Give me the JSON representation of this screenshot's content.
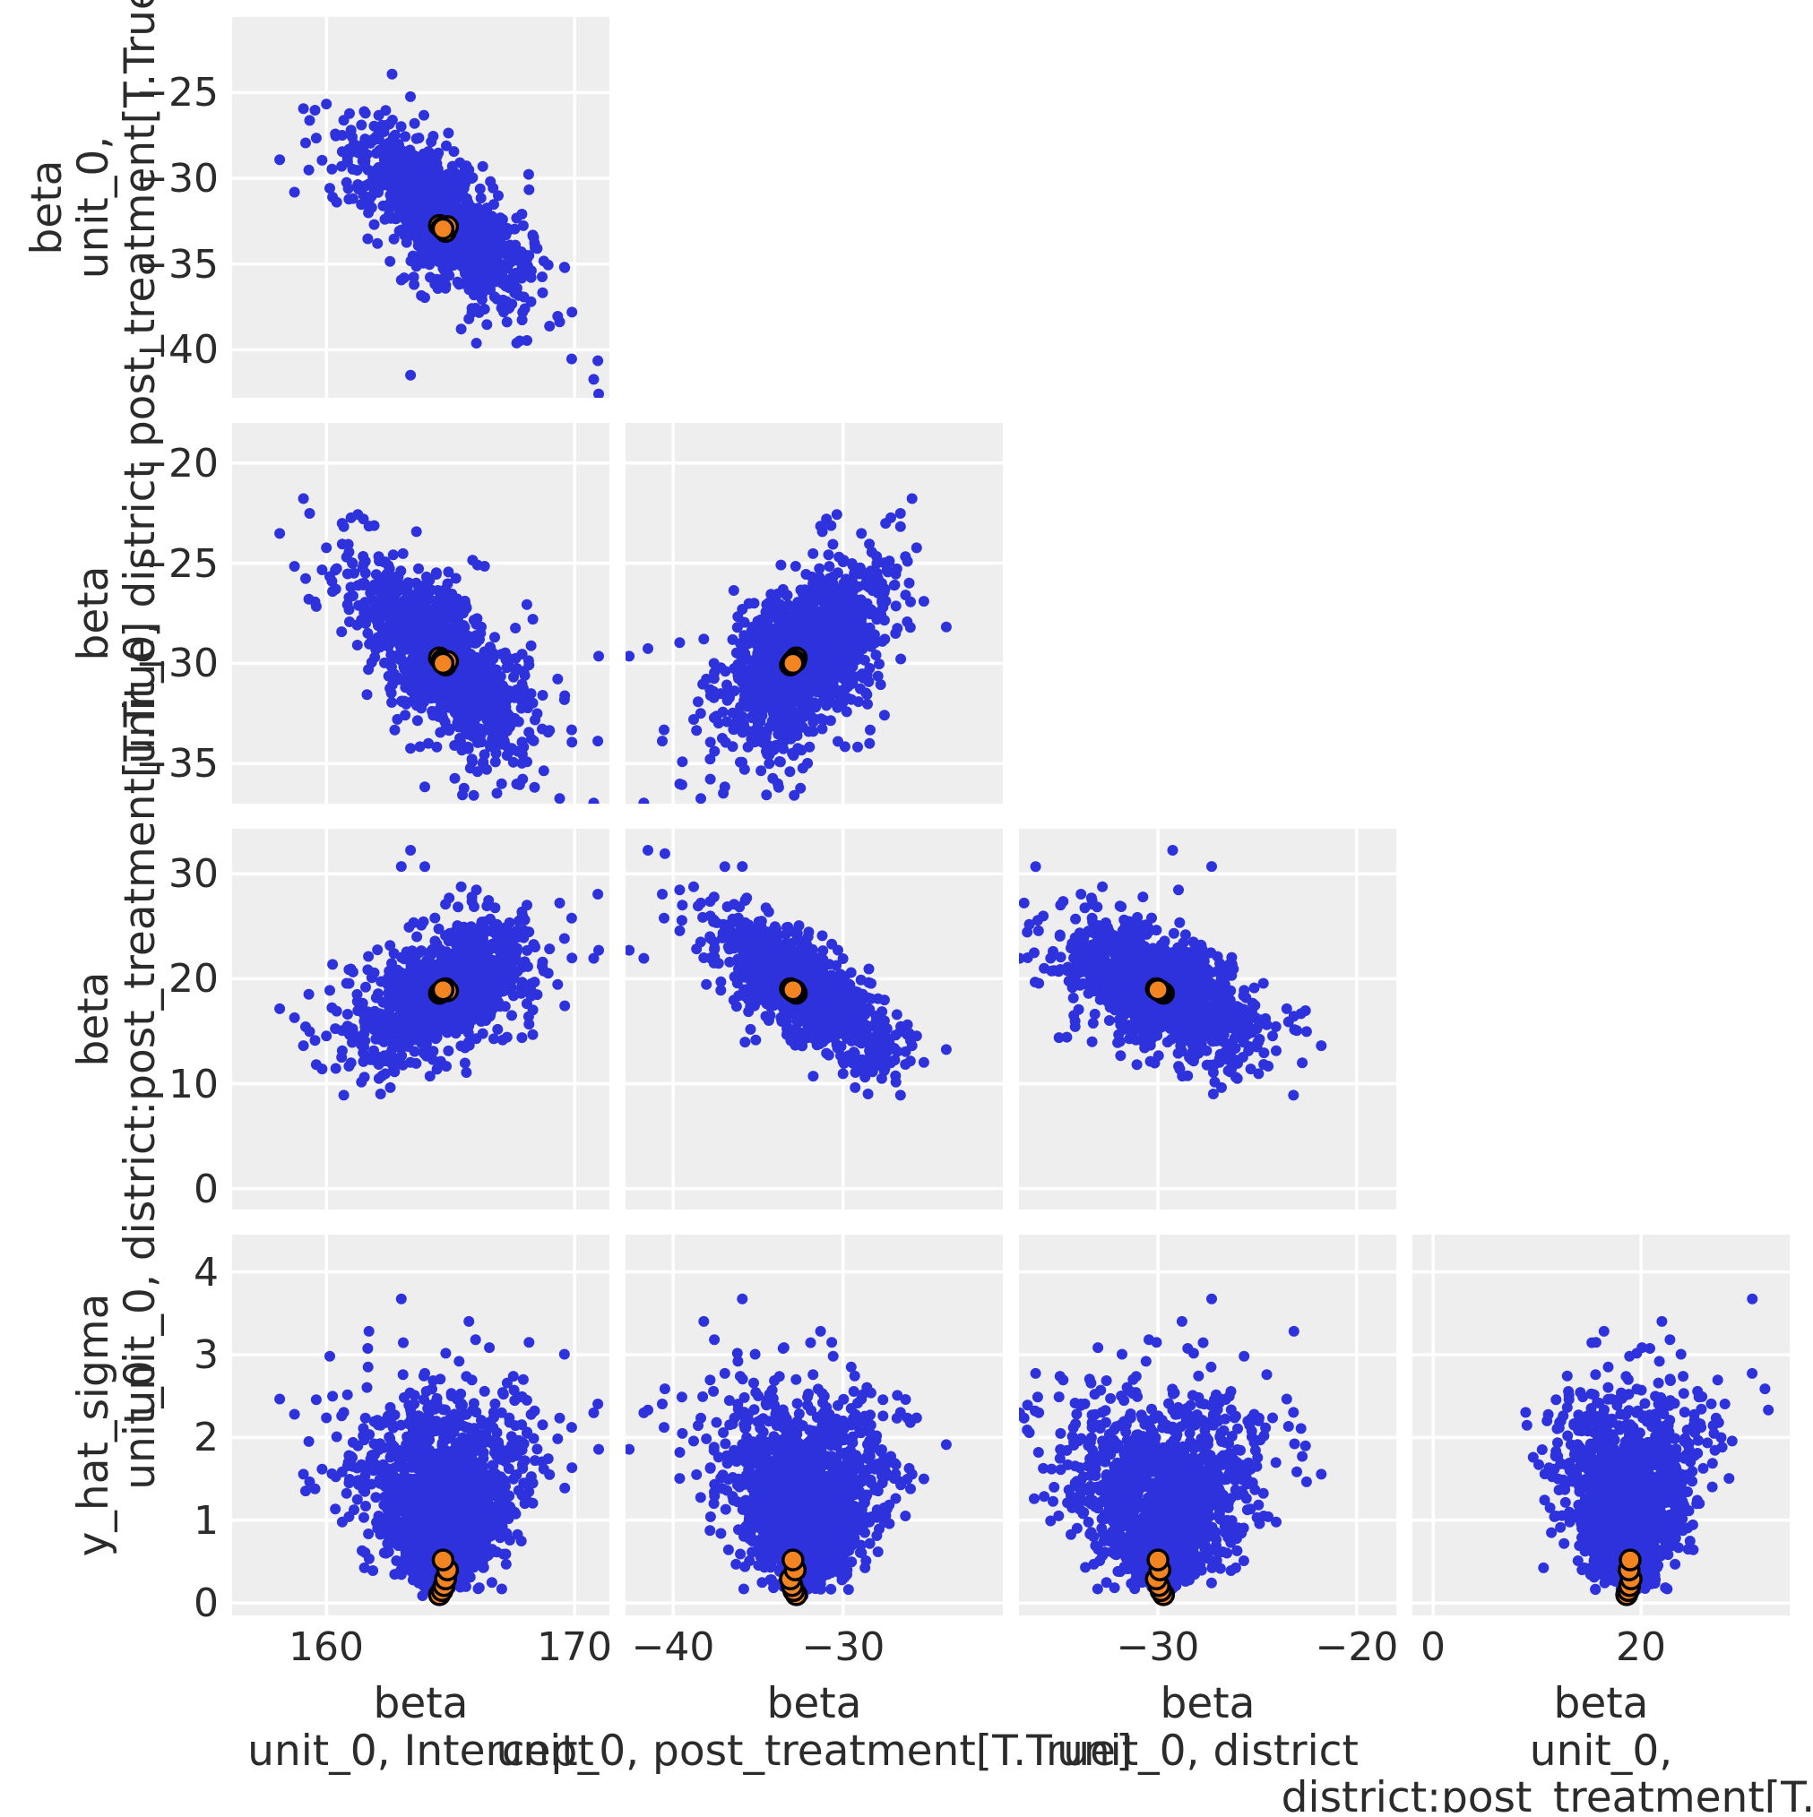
{
  "figure": {
    "kind": "posterior pairplot (lower triangular scatter matrix)",
    "background": "#ffffff"
  },
  "style": {
    "panel_bg": "#eeeeee",
    "grid_color": "#ffffff",
    "point_color": "#2e32dc",
    "highlight_color": "#f28422",
    "highlight_edge": "#000000",
    "text_color": "#2b2b2b"
  },
  "chart_data": {
    "type": "scatter",
    "subtype": "pairplot-lower-triangle",
    "grid": true,
    "legend": "none",
    "n_points": 1400,
    "seed": 1234,
    "variables": [
      {
        "name": "beta unit_0, Intercept",
        "mean": 164.75,
        "sd": 1.7
      },
      {
        "name": "beta unit_0, post_treatment[T.True]",
        "mean": -32.4,
        "sd": 2.4
      },
      {
        "name": "beta unit_0, district",
        "mean": -29.9,
        "sd": 2.3
      },
      {
        "name": "beta unit_0, district:post_treatment[T.True]",
        "mean": 18.9,
        "sd": 3.2
      },
      {
        "name": "y_hat_sigma unit_0",
        "mean": 1.21,
        "sd": 0.62
      }
    ],
    "correlations": [
      [
        0,
        1,
        -0.74
      ],
      [
        0,
        2,
        -0.68
      ],
      [
        0,
        3,
        0.52
      ],
      [
        1,
        2,
        0.56
      ],
      [
        1,
        3,
        -0.74
      ],
      [
        2,
        3,
        -0.58
      ]
    ],
    "x_axis_labels": [
      [
        "beta",
        "unit_0, Intercept"
      ],
      [
        "beta",
        "unit_0, post_treatment[T.True]"
      ],
      [
        "beta",
        "unit_0, district"
      ],
      [
        "beta",
        "unit_0,",
        "district:post_treatment[T.True]"
      ]
    ],
    "y_axis_labels": [
      [
        "beta",
        "unit_0,",
        "post_treatment[T.True]"
      ],
      [
        "beta",
        "unit_0, district"
      ],
      [
        "beta",
        "unit_0, district:post_treatment[T.True]"
      ],
      [
        "y_hat_sigma",
        "unit_0"
      ]
    ],
    "x_ticks": [
      [
        160,
        170
      ],
      [
        -40,
        -30
      ],
      [
        -30,
        -20
      ],
      [
        0,
        20
      ]
    ],
    "y_ticks": [
      [
        -25,
        -30,
        -35,
        -40
      ],
      [
        -20,
        -25,
        -30,
        -35
      ],
      [
        30,
        20,
        10,
        0
      ],
      [
        4,
        3,
        2,
        1,
        0
      ]
    ],
    "x_lims": [
      [
        156.2,
        171.4
      ],
      [
        -42.8,
        -20.6
      ],
      [
        -37.0,
        -18.0
      ],
      [
        -2.0,
        34.3
      ]
    ],
    "y_lims": [
      [
        -20.6,
        -42.8
      ],
      [
        -18.0,
        -37.0
      ],
      [
        34.3,
        -2.0
      ],
      [
        4.45,
        -0.15
      ]
    ],
    "highlight_values": [
      [
        164.55,
        164.66,
        164.74,
        164.8,
        164.88,
        164.7
      ],
      [
        -32.75,
        -32.9,
        -33.0,
        -33.1,
        -32.82,
        -32.95
      ],
      [
        -29.72,
        -29.85,
        -29.95,
        -30.08,
        -29.9,
        -30.0
      ],
      [
        18.62,
        18.78,
        18.9,
        19.05,
        18.85,
        18.95
      ],
      [
        0.1,
        0.15,
        0.21,
        0.29,
        0.4,
        0.52
      ]
    ],
    "sigma_rayleigh": {
      "offset": 0.08,
      "scale": 0.95
    },
    "funnel": {
      "base": 0.4,
      "slope": 0.42,
      "max": 1.9
    },
    "outlier_fraction": 0.02,
    "outlier_boost": 1.8
  }
}
